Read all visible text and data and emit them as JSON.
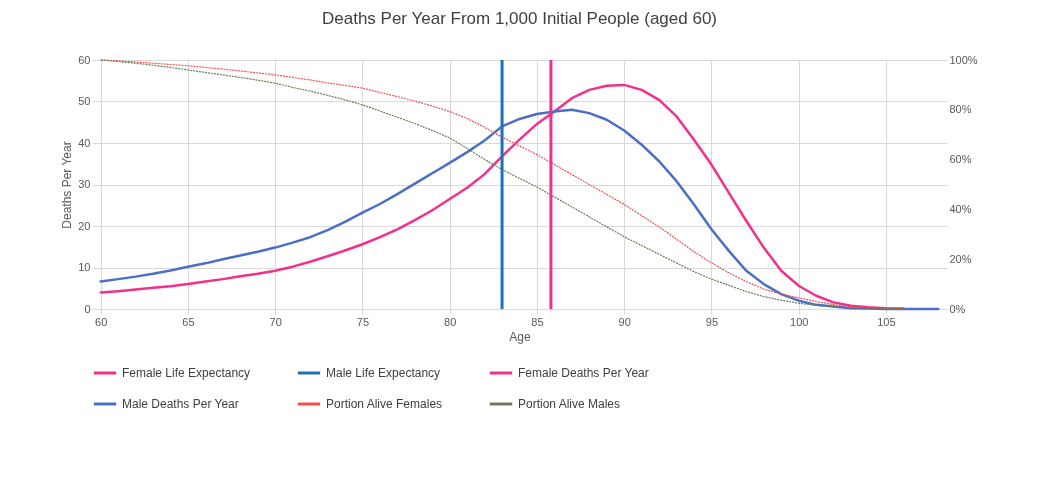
{
  "chart_data": {
    "type": "line",
    "title": "Deaths Per Year From 1,000 Initial People (aged 60)",
    "xlabel": "Age",
    "ylabel": "Deaths Per Year",
    "x": [
      60,
      61,
      62,
      63,
      64,
      65,
      66,
      67,
      68,
      69,
      70,
      71,
      72,
      73,
      74,
      75,
      76,
      77,
      78,
      79,
      80,
      81,
      82,
      83,
      84,
      85,
      86,
      87,
      88,
      89,
      90,
      91,
      92,
      93,
      94,
      95,
      96,
      97,
      98,
      99,
      100,
      101,
      102,
      103,
      104,
      105,
      106,
      107,
      108
    ],
    "xlim": [
      59.5,
      108.5
    ],
    "xticks": [
      60,
      65,
      70,
      75,
      80,
      85,
      90,
      95,
      100,
      105
    ],
    "ylim": [
      0,
      60
    ],
    "yticks": [
      0,
      10,
      20,
      30,
      40,
      50,
      60
    ],
    "y2lim": [
      0,
      100
    ],
    "y2ticks": [
      {
        "value": 0,
        "label": "0%"
      },
      {
        "value": 20,
        "label": "20%"
      },
      {
        "value": 40,
        "label": "40%"
      },
      {
        "value": 60,
        "label": "60%"
      },
      {
        "value": 80,
        "label": "80%"
      },
      {
        "value": 100,
        "label": "100%"
      }
    ],
    "grid": true,
    "legend": "bottom",
    "ref_lines": [
      {
        "axis": "x",
        "value": 85.8,
        "label": "Female Life Expectancy",
        "color": "#f2308c"
      },
      {
        "axis": "x",
        "value": 83.0,
        "label": "Male Life Expectancy",
        "color": "#1f6fbf"
      }
    ],
    "series": [
      {
        "name": "Female Deaths Per Year",
        "color": "#f2308c",
        "line_style": "solid",
        "axis": "y",
        "values": [
          4,
          4.3,
          4.7,
          5.1,
          5.5,
          6,
          6.6,
          7.2,
          7.9,
          8.5,
          9.2,
          10.2,
          11.4,
          12.7,
          14.1,
          15.6,
          17.3,
          19.2,
          21.4,
          23.8,
          26.5,
          29.2,
          32.5,
          36.8,
          40.8,
          44.6,
          47.6,
          50.8,
          52.8,
          53.8,
          54,
          52.8,
          50.4,
          46.4,
          40.8,
          34.8,
          28,
          21.2,
          14.8,
          9.2,
          5.6,
          3.2,
          1.6,
          0.8,
          0.4,
          0.2,
          0.1,
          null,
          null
        ]
      },
      {
        "name": "Male Deaths Per Year",
        "color": "#4a6fc4",
        "line_style": "solid",
        "axis": "y",
        "values": [
          6.6,
          7.2,
          7.8,
          8.5,
          9.3,
          10.2,
          11,
          12,
          12.9,
          13.8,
          14.8,
          16,
          17.3,
          19,
          21,
          23.2,
          25.3,
          27.7,
          30.2,
          32.7,
          35.2,
          37.8,
          40.6,
          44,
          45.8,
          47,
          47.6,
          48,
          47.2,
          45.6,
          43,
          39.6,
          35.6,
          30.8,
          25.2,
          19.2,
          14,
          9.2,
          6,
          3.6,
          2,
          1,
          0.6,
          0.2,
          0.1,
          0,
          0,
          0,
          0
        ]
      },
      {
        "name": "Portion Alive Females",
        "color": "#f05050",
        "line_style": "dotted",
        "axis": "y2",
        "values": [
          100,
          99.6,
          99.2,
          98.7,
          98.2,
          97.7,
          97,
          96.3,
          95.6,
          94.8,
          94,
          93,
          92,
          90.8,
          89.8,
          88.7,
          87,
          85.3,
          83.5,
          81.5,
          79.3,
          76.5,
          73,
          69,
          65.5,
          62,
          58,
          54,
          50,
          46,
          42,
          37.5,
          33,
          28,
          23,
          18.5,
          14.5,
          11,
          8,
          6,
          4.5,
          3,
          1.8,
          1,
          0.5,
          0.3,
          0.1,
          null,
          null
        ]
      },
      {
        "name": "Portion Alive Males",
        "color": "#6b7a5a",
        "line_style": "dotted",
        "axis": "y2",
        "values": [
          100,
          99.4,
          98.7,
          97.9,
          97,
          96,
          95,
          94,
          93,
          91.9,
          90.7,
          89,
          87.5,
          85.8,
          84,
          82,
          79.5,
          77,
          74.5,
          71.7,
          68.7,
          64.5,
          60,
          56,
          52.5,
          49,
          45,
          41,
          37,
          33,
          29,
          25.5,
          22,
          18.5,
          15,
          12,
          9.5,
          7,
          5,
          3.5,
          2.3,
          1.5,
          0.9,
          0.5,
          0.3,
          0.1,
          0,
          null,
          null
        ]
      }
    ]
  }
}
